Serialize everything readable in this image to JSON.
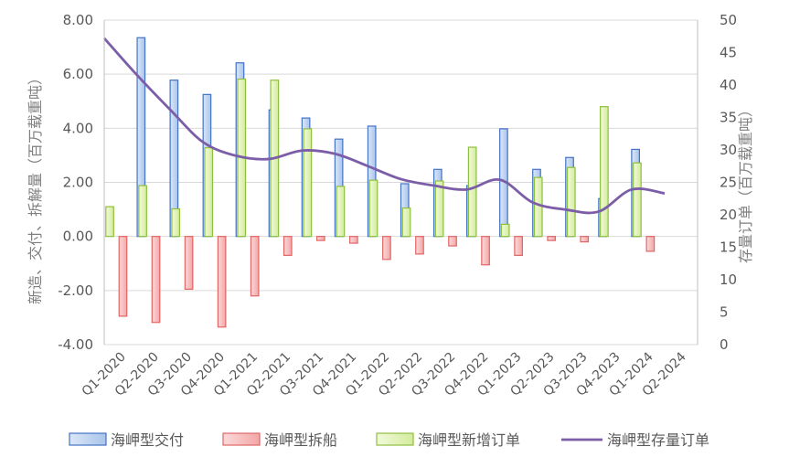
{
  "chart_data": {
    "type": "bar+line",
    "categories": [
      "Q1-2020",
      "Q2-2020",
      "Q3-2020",
      "Q4-2020",
      "Q1-2021",
      "Q2-2021",
      "Q3-2021",
      "Q4-2021",
      "Q1-2022",
      "Q2-2022",
      "Q3-2022",
      "Q4-2022",
      "Q1-2023",
      "Q2-2023",
      "Q3-2023",
      "Q4-2023",
      "Q1-2024",
      "Q2-2024"
    ],
    "series": [
      {
        "name": "海岬型交付",
        "type": "bar",
        "axis": "left",
        "color": "#4472c4",
        "values": [
          0,
          7.35,
          5.78,
          5.25,
          6.42,
          4.68,
          4.38,
          3.6,
          4.08,
          1.95,
          2.48,
          1.88,
          3.98,
          2.48,
          2.92,
          1.4,
          3.22,
          0
        ]
      },
      {
        "name": "海岬型拆船",
        "type": "bar",
        "axis": "left",
        "color": "#e06666",
        "values": [
          -2.95,
          -3.18,
          -1.95,
          -3.35,
          -2.2,
          -0.7,
          -0.15,
          -0.25,
          -0.85,
          -0.65,
          -0.35,
          -1.05,
          -0.7,
          -0.15,
          -0.2,
          0,
          -0.55,
          0
        ]
      },
      {
        "name": "海岬型新增订单",
        "type": "bar",
        "axis": "left",
        "color": "#8fbf3f",
        "values": [
          1.1,
          1.88,
          1.02,
          3.28,
          5.82,
          5.78,
          3.98,
          1.85,
          2.08,
          1.05,
          2.05,
          3.3,
          0.45,
          2.18,
          2.55,
          4.8,
          2.72,
          0
        ]
      },
      {
        "name": "海岬型存量订单",
        "type": "line",
        "axis": "right",
        "color": "#7b5ea7",
        "values": [
          47.2,
          41.5,
          36.2,
          31.2,
          29.1,
          28.6,
          29.9,
          29.4,
          27.5,
          25.5,
          24.5,
          23.9,
          25.4,
          21.9,
          20.8,
          20.5,
          23.9,
          23.3
        ]
      }
    ],
    "y_left": {
      "label": "新造、交付、拆解量（百万载重吨）",
      "min": -4,
      "max": 8,
      "ticks": [
        "-4.00",
        "-2.00",
        "0.00",
        "2.00",
        "4.00",
        "6.00",
        "8.00"
      ]
    },
    "y_right": {
      "label": "存量订单（百万载重吨）",
      "min": 0,
      "max": 50,
      "ticks": [
        "0",
        "5",
        "10",
        "15",
        "20",
        "25",
        "30",
        "35",
        "40",
        "45",
        "50"
      ]
    },
    "grid": true,
    "legend_position": "bottom"
  }
}
